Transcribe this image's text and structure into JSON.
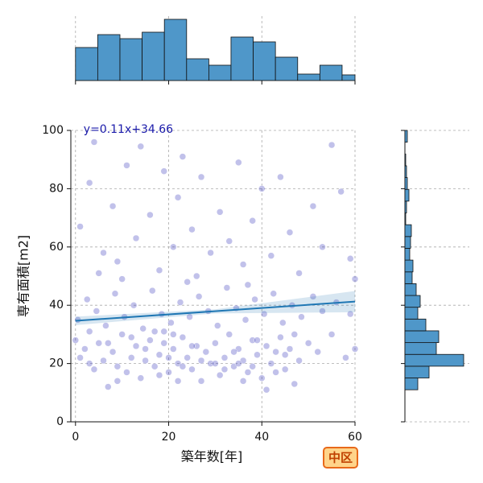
{
  "chart_data": [
    {
      "type": "scatter",
      "xlabel": "築年数[年]",
      "ylabel": "専有面積[m2]",
      "xlim": [
        -1,
        60
      ],
      "ylim": [
        0,
        100
      ],
      "xticks": [
        0,
        20,
        40,
        60
      ],
      "yticks": [
        0,
        20,
        40,
        60,
        80,
        100
      ],
      "grid": true,
      "color": "#3333bb",
      "x": [
        0,
        1,
        2,
        3,
        4,
        5,
        6,
        7,
        8,
        9,
        10,
        11,
        12,
        13,
        14,
        15,
        16,
        17,
        18,
        19,
        20,
        21,
        22,
        23,
        24,
        25,
        26,
        27,
        28,
        29,
        30,
        31,
        32,
        33,
        34,
        35,
        36,
        37,
        38,
        39,
        40,
        41,
        42,
        43,
        44,
        45,
        46,
        47,
        48,
        50,
        52,
        55,
        58,
        60,
        0.5,
        2.5,
        4.5,
        6.5,
        8.5,
        10.5,
        12.5,
        14.5,
        16.5,
        18.5,
        20.5,
        22.5,
        24.5,
        26.5,
        28.5,
        30.5,
        32.5,
        34.5,
        36.5,
        38.5,
        40.5,
        42.5,
        44.5,
        46.5,
        48.5,
        51,
        53,
        56,
        59,
        1,
        3,
        4,
        6,
        8,
        9,
        11,
        13,
        14,
        16,
        18,
        19,
        21,
        22,
        23,
        25,
        26,
        27,
        29,
        31,
        33,
        35,
        36,
        38,
        40,
        42,
        44,
        46,
        48,
        51,
        53,
        55,
        57,
        59,
        60,
        37,
        24,
        10,
        5,
        3,
        7,
        9,
        12,
        15,
        18,
        20,
        21,
        22,
        23,
        25,
        27,
        30,
        32,
        34,
        36,
        38,
        39,
        41,
        43,
        45,
        47,
        35,
        19,
        17
      ],
      "y": [
        28,
        22,
        25,
        31,
        18,
        27,
        21,
        12,
        24,
        19,
        30,
        17,
        22,
        26,
        15,
        21,
        28,
        19,
        23,
        31,
        17,
        25,
        20,
        29,
        22,
        18,
        26,
        14,
        24,
        20,
        27,
        16,
        22,
        30,
        19,
        25,
        21,
        17,
        28,
        23,
        15,
        26,
        20,
        24,
        29,
        18,
        25,
        30,
        21,
        27,
        24,
        30,
        22,
        25,
        35,
        42,
        38,
        33,
        44,
        36,
        40,
        32,
        45,
        37,
        34,
        41,
        36,
        43,
        38,
        33,
        46,
        39,
        35,
        42,
        37,
        44,
        34,
        40,
        36,
        43,
        38,
        41,
        37,
        67,
        82,
        96,
        58,
        74,
        55,
        88,
        63,
        94.5,
        71,
        52,
        86,
        60,
        77,
        91,
        66,
        50,
        84,
        58,
        72,
        62,
        89,
        54,
        69,
        80,
        57,
        84,
        65,
        51,
        74,
        60,
        95,
        79,
        56,
        49,
        47,
        48,
        49,
        51,
        20,
        27,
        14,
        29,
        25,
        16,
        22,
        30,
        14,
        19,
        26,
        21,
        20,
        18,
        24,
        14,
        19,
        28,
        11,
        17,
        23,
        13,
        20,
        27,
        31
      ],
      "regression": {
        "slope": 0.11,
        "intercept": 34.66,
        "label": "y=0.11x+34.66",
        "color": "#1f77b4",
        "ci_x": [
          0,
          30,
          60
        ],
        "ci_lower": [
          33.2,
          37.2,
          37.6
        ],
        "ci_upper": [
          36.1,
          38.6,
          44.9
        ]
      },
      "annotation": "中区"
    },
    {
      "type": "histogram",
      "orientation": "vertical",
      "color": "#4f97c9",
      "bins": [
        0,
        4.77,
        9.54,
        14.31,
        19.08,
        23.85,
        28.62,
        33.38,
        38.15,
        42.92,
        47.69,
        52.46,
        57.23,
        62
      ],
      "counts": [
        41,
        57,
        52,
        60,
        76,
        27,
        19,
        54,
        48,
        29,
        8,
        19,
        7
      ],
      "ylim": [
        0,
        80
      ]
    },
    {
      "type": "histogram",
      "orientation": "horizontal",
      "color": "#4f97c9",
      "bins": [
        11,
        15.05,
        19.09,
        23.14,
        27.18,
        31.23,
        35.27,
        39.32,
        43.36,
        47.41,
        51.45,
        55.5,
        59.55,
        63.59,
        67.64,
        71.68,
        75.73,
        79.77,
        83.82,
        87.86,
        91.91,
        95.95,
        100
      ],
      "counts": [
        16,
        30,
        73,
        39,
        42,
        26,
        16,
        19,
        14,
        9,
        10,
        6,
        7,
        8,
        1,
        2,
        5,
        3,
        2,
        1,
        0,
        3
      ],
      "xlim": [
        0,
        80
      ]
    }
  ]
}
